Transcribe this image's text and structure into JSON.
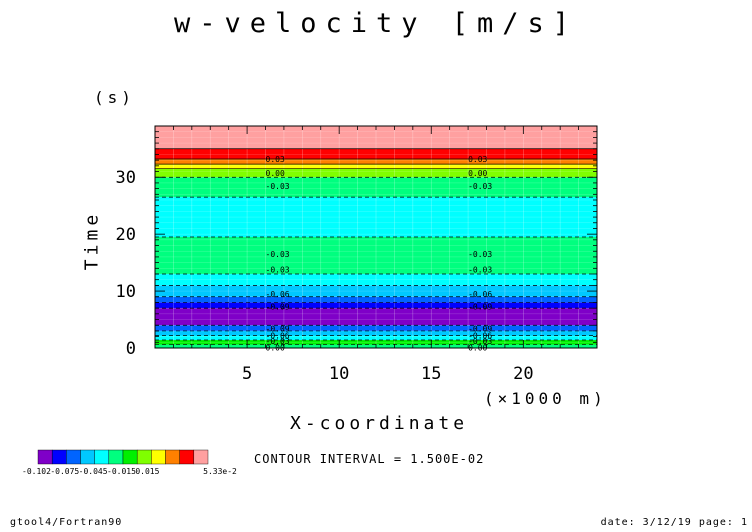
{
  "title": "w-velocity [m/s]",
  "footer": {
    "left": "gtool4/Fortran90",
    "right": "date: 3/12/19 page: 1"
  },
  "contour_interval_text": "CONTOUR INTERVAL = 1.500E-02",
  "colorbar": {
    "labels": [
      "-0.102",
      "-0.075",
      "-0.045",
      "-0.015",
      "0.015",
      "5.33e-2"
    ],
    "colors": [
      "#7f00c8",
      "#0000ff",
      "#0064ff",
      "#00c8ff",
      "#00ffff",
      "#00ff7f",
      "#00f000",
      "#7fff00",
      "#ffff00",
      "#ff8000",
      "#ff0000",
      "#ffa0a0"
    ]
  },
  "chart_data": {
    "type": "heatmap",
    "title": "w-velocity [m/s]",
    "xlabel": "X-coordinate",
    "x_unit": "(×1000 m)",
    "ylabel": "Time",
    "y_unit": "(s)",
    "xlim": [
      0,
      24
    ],
    "ylim": [
      0,
      39
    ],
    "x_ticks": [
      5,
      10,
      15,
      20
    ],
    "y_ticks": [
      0,
      10,
      20,
      30
    ],
    "grid": false,
    "levels": [
      -0.102,
      -0.09,
      -0.075,
      -0.06,
      -0.045,
      -0.03,
      -0.015,
      0.0,
      0.015,
      0.03,
      0.045,
      0.0533
    ],
    "bands": [
      {
        "t0": 0.0,
        "t1": 0.6,
        "color": "#00ff7f"
      },
      {
        "t0": 0.6,
        "t1": 1.4,
        "color": "#00f000"
      },
      {
        "t0": 1.4,
        "t1": 2.2,
        "color": "#00ffff"
      },
      {
        "t0": 2.2,
        "t1": 3.0,
        "color": "#00c8ff"
      },
      {
        "t0": 3.0,
        "t1": 4.0,
        "color": "#0064ff"
      },
      {
        "t0": 4.0,
        "t1": 7.0,
        "color": "#7f00c8"
      },
      {
        "t0": 7.0,
        "t1": 8.0,
        "color": "#0000ff"
      },
      {
        "t0": 8.0,
        "t1": 9.0,
        "color": "#0064ff"
      },
      {
        "t0": 9.0,
        "t1": 11.0,
        "color": "#00c8ff"
      },
      {
        "t0": 11.0,
        "t1": 13.0,
        "color": "#00ffff"
      },
      {
        "t0": 13.0,
        "t1": 19.5,
        "color": "#00ff7f"
      },
      {
        "t0": 19.5,
        "t1": 26.5,
        "color": "#00ffff"
      },
      {
        "t0": 26.5,
        "t1": 30.0,
        "color": "#00ff7f"
      },
      {
        "t0": 30.0,
        "t1": 31.5,
        "color": "#7fff00"
      },
      {
        "t0": 31.5,
        "t1": 32.3,
        "color": "#ffff00"
      },
      {
        "t0": 32.3,
        "t1": 33.2,
        "color": "#ff8000"
      },
      {
        "t0": 33.2,
        "t1": 35.0,
        "color": "#ff0000"
      },
      {
        "t0": 35.0,
        "t1": 39.0,
        "color": "#ffa0a0"
      }
    ],
    "contour_labels": [
      {
        "text": "0.03",
        "t": 33.2
      },
      {
        "text": "0.00",
        "t": 30.7
      },
      {
        "text": "-0.03",
        "t": 28.5
      },
      {
        "text": "-0.03",
        "t": 16.5
      },
      {
        "text": "-0.03",
        "t": 13.8
      },
      {
        "text": "-0.06",
        "t": 9.5
      },
      {
        "text": "-0.09",
        "t": 7.3
      },
      {
        "text": "-0.09",
        "t": 3.4
      },
      {
        "text": "-0.06",
        "t": 2.2
      },
      {
        "text": "-0.03",
        "t": 1.2
      },
      {
        "text": "0.00",
        "t": 0.1
      }
    ],
    "label_x_positions": [
      6,
      17
    ]
  }
}
